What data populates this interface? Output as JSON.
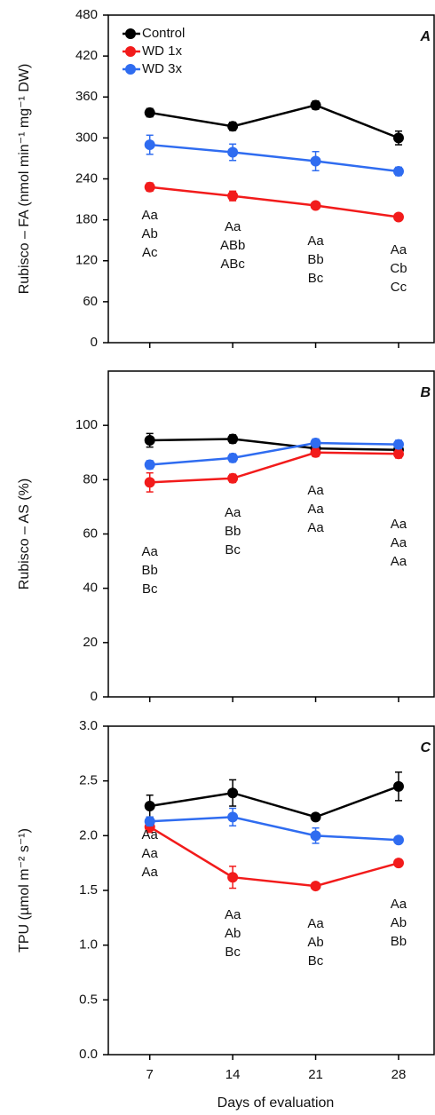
{
  "chart_data": [
    {
      "type": "line",
      "panel": "A",
      "ylabel": "Rubisco – FA (nmol min⁻¹ mg⁻¹ DW)",
      "x": [
        7,
        14,
        21,
        28
      ],
      "xlim": [
        3.5,
        31
      ],
      "xticks": [
        7,
        14,
        21,
        28
      ],
      "ylim": [
        0,
        480
      ],
      "yticks": [
        0,
        60,
        120,
        180,
        240,
        300,
        360,
        420,
        480
      ],
      "legend": "upper left",
      "series": [
        {
          "name": "Control",
          "color": "#000000",
          "values": [
            337,
            317,
            348,
            300
          ],
          "errors": [
            6,
            6,
            6,
            10
          ],
          "letters": [
            "Aa",
            "Aa",
            "Aa",
            "Aa"
          ]
        },
        {
          "name": "WD 1x",
          "color": "#f21b1b",
          "values": [
            228,
            215,
            201,
            184
          ],
          "errors": [
            6,
            7,
            5,
            4
          ],
          "letters": [
            "Ac",
            "ABc",
            "Bc",
            "Cc"
          ]
        },
        {
          "name": "WD 3x",
          "color": "#2f6cf0",
          "values": [
            290,
            279,
            266,
            251
          ],
          "errors": [
            14,
            12,
            14,
            6
          ],
          "letters": [
            "Ab",
            "ABb",
            "Bb",
            "Cb"
          ]
        }
      ]
    },
    {
      "type": "line",
      "panel": "B",
      "ylabel": "Rubisco – AS (%)",
      "x": [
        7,
        14,
        21,
        28
      ],
      "xlim": [
        3.5,
        31
      ],
      "xticks": [
        7,
        14,
        21,
        28
      ],
      "ylim": [
        0,
        120
      ],
      "yticks": [
        0,
        20,
        40,
        60,
        80,
        100
      ],
      "series": [
        {
          "color": "#000000",
          "values": [
            94.5,
            95,
            91.5,
            91
          ],
          "errors": [
            2.5,
            1.5,
            1.5,
            1.5
          ],
          "letters": [
            "Aa",
            "Aa",
            "Aa",
            "Aa"
          ]
        },
        {
          "color": "#f21b1b",
          "values": [
            79,
            80.5,
            90,
            89.5
          ],
          "errors": [
            3.5,
            1.5,
            1.5,
            1.5
          ],
          "letters": [
            "Bc",
            "Bc",
            "Aa",
            "Aa"
          ]
        },
        {
          "color": "#2f6cf0",
          "values": [
            85.5,
            88,
            93.5,
            93
          ],
          "errors": [
            1.5,
            1.5,
            1.5,
            1.5
          ],
          "letters": [
            "Bb",
            "Bb",
            "Aa",
            "Aa"
          ]
        }
      ]
    },
    {
      "type": "line",
      "panel": "C",
      "ylabel": "TPU (µmol m⁻² s⁻¹)",
      "xlabel": "Days of evaluation",
      "x": [
        7,
        14,
        21,
        28
      ],
      "xlim": [
        3.5,
        31
      ],
      "xticks": [
        7,
        14,
        21,
        28
      ],
      "ylim": [
        0,
        3
      ],
      "yticks": [
        {
          "value": 0,
          "label": "0.0"
        },
        0.5,
        {
          "value": 1,
          "label": "1.0"
        },
        1.5,
        {
          "value": 2,
          "label": "2.0"
        },
        2.5,
        {
          "value": 3,
          "label": "3.0"
        }
      ],
      "series": [
        {
          "color": "#000000",
          "values": [
            2.27,
            2.39,
            2.17,
            2.45
          ],
          "errors": [
            0.1,
            0.12,
            0.03,
            0.13
          ],
          "letters": [
            "Aa",
            "Aa",
            "Aa",
            "Aa"
          ]
        },
        {
          "color": "#f21b1b",
          "values": [
            2.08,
            1.62,
            1.54,
            1.75
          ],
          "errors": [
            0.05,
            0.1,
            0.03,
            0.03
          ],
          "letters": [
            "Aa",
            "Bc",
            "Bc",
            "Bb"
          ]
        },
        {
          "color": "#2f6cf0",
          "values": [
            2.13,
            2.17,
            2.0,
            1.96
          ],
          "errors": [
            0.04,
            0.08,
            0.07,
            0.03
          ],
          "letters": [
            "Aa",
            "Ab",
            "Ab",
            "Ab"
          ]
        }
      ]
    }
  ]
}
